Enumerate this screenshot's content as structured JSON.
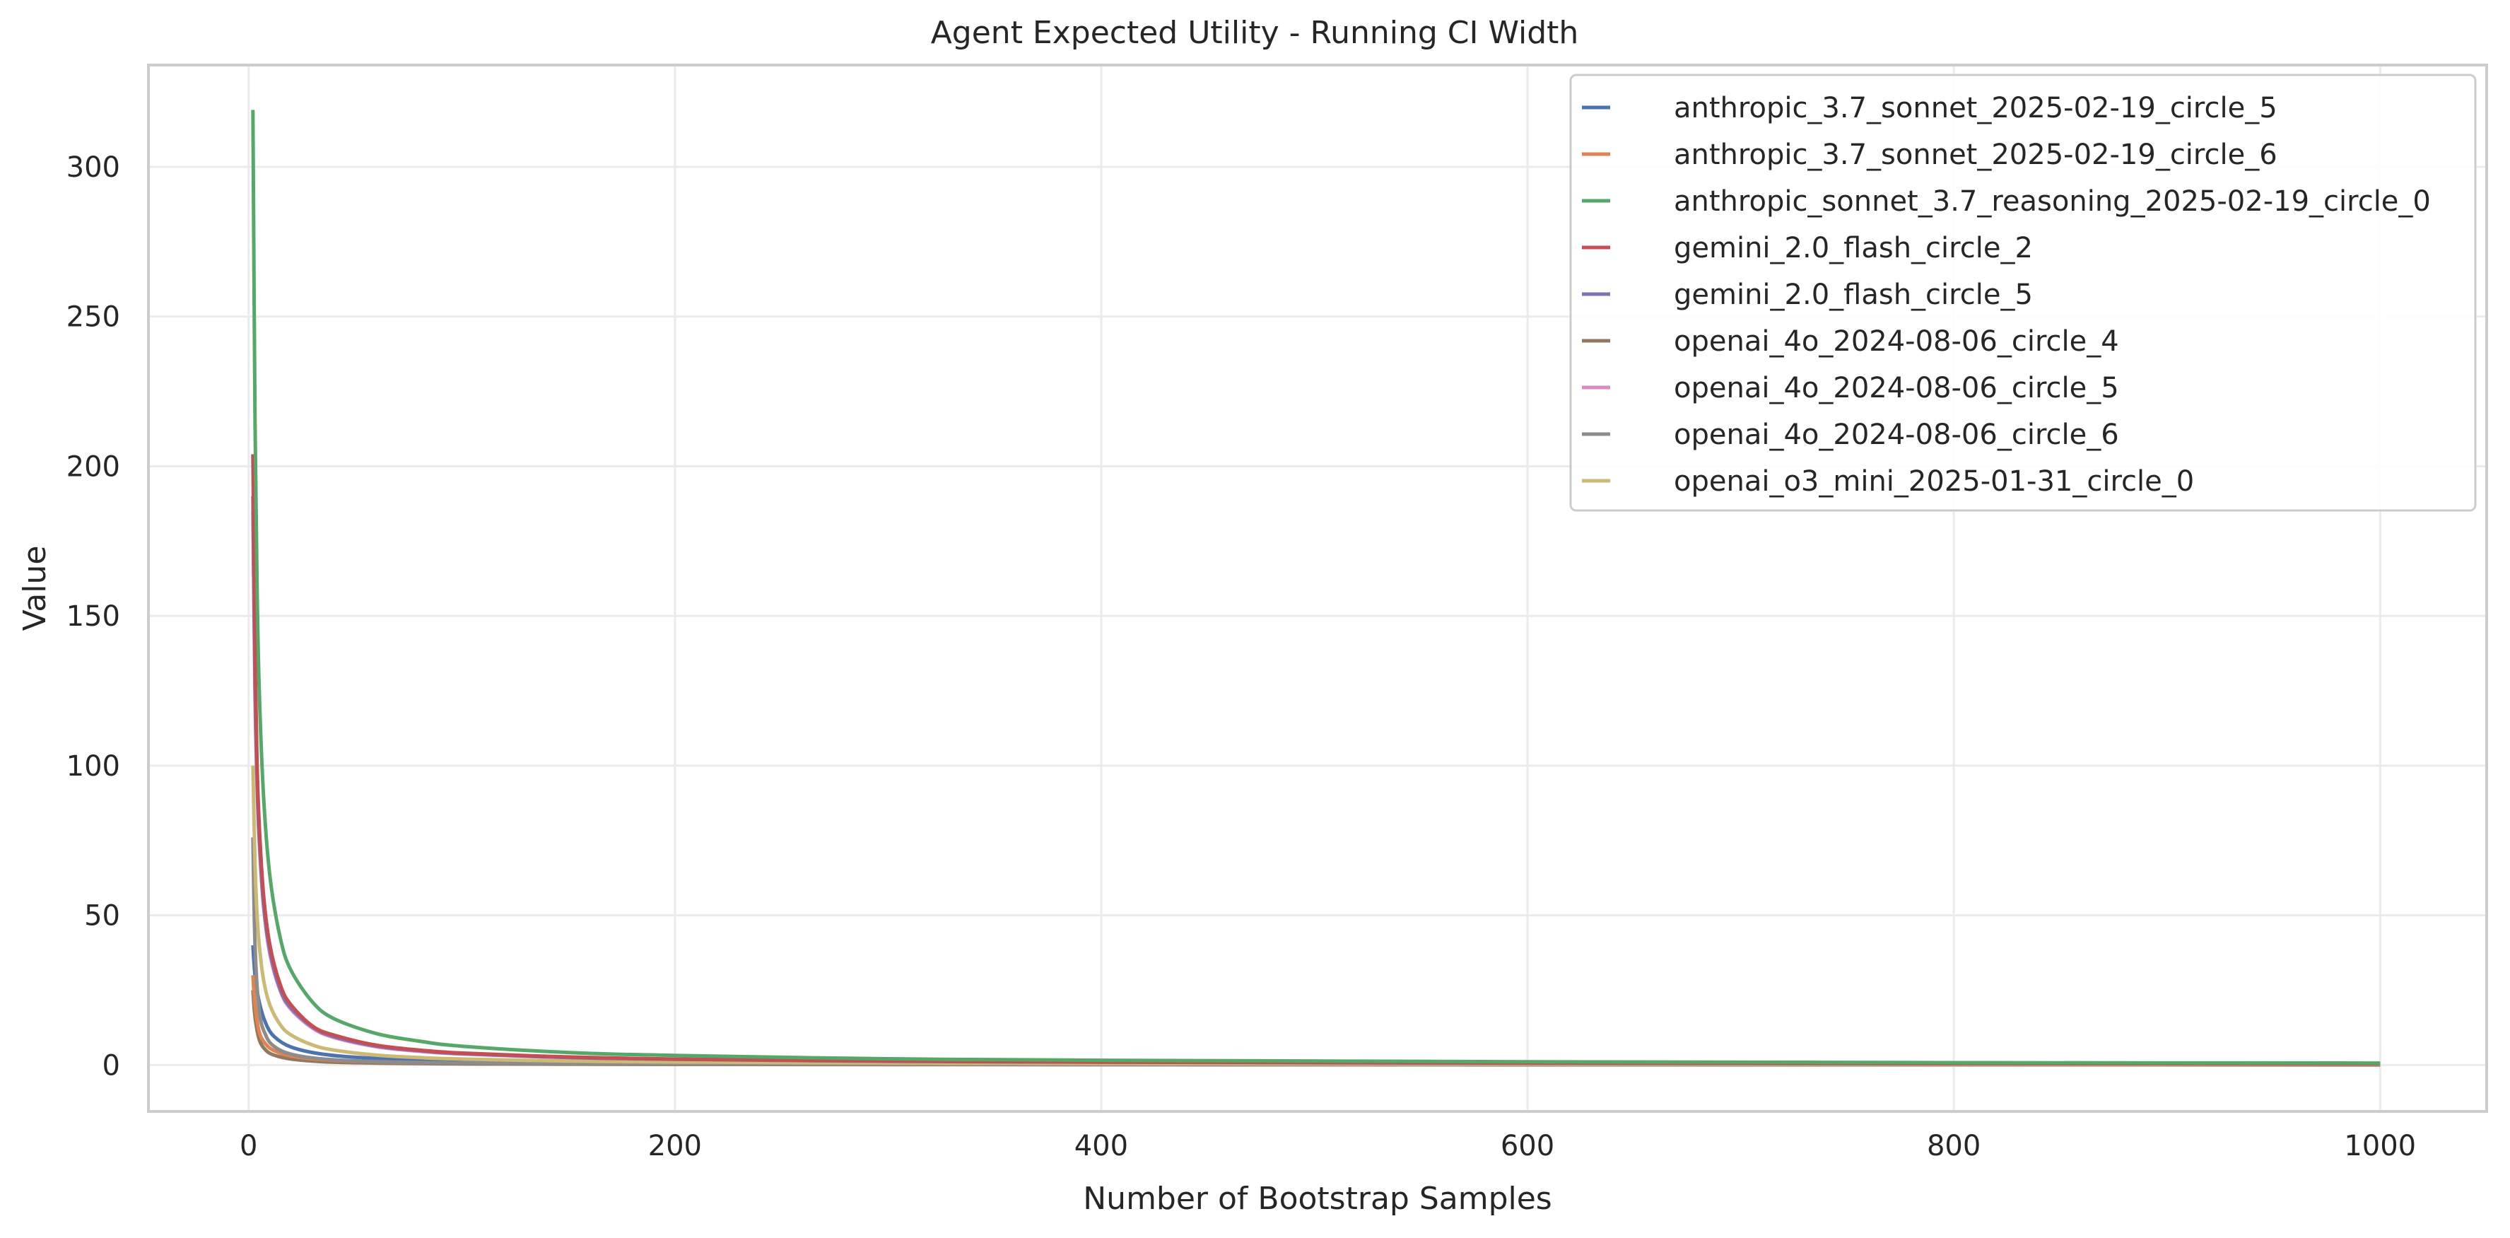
{
  "chart_data": {
    "type": "line",
    "title": "Agent Expected Utility - Running CI Width",
    "xlabel": "Number of Bootstrap Samples",
    "ylabel": "Value",
    "xlim": [
      -47,
      1050
    ],
    "ylim": [
      -15.5,
      334
    ],
    "xticks": [
      0,
      200,
      400,
      600,
      800,
      1000
    ],
    "yticks": [
      0,
      50,
      100,
      150,
      200,
      250,
      300
    ],
    "grid": true,
    "legend_position": "top-right",
    "x_range": [
      2,
      1000
    ],
    "series": [
      {
        "name": "anthropic_3.7_sonnet_2025-02-19_circle_5",
        "color": "#4c72b0",
        "points": [
          [
            2,
            40
          ],
          [
            3,
            30
          ],
          [
            5,
            21
          ],
          [
            8,
            14
          ],
          [
            12,
            9.5
          ],
          [
            20,
            6
          ],
          [
            35,
            3.6
          ],
          [
            60,
            2.2
          ],
          [
            100,
            1.4
          ],
          [
            200,
            0.8
          ],
          [
            400,
            0.45
          ],
          [
            700,
            0.3
          ],
          [
            1000,
            0.22
          ]
        ]
      },
      {
        "name": "anthropic_3.7_sonnet_2025-02-19_circle_6",
        "color": "#dd8452",
        "points": [
          [
            2,
            30
          ],
          [
            3,
            20
          ],
          [
            5,
            11
          ],
          [
            8,
            7
          ],
          [
            12,
            4.8
          ],
          [
            20,
            3
          ],
          [
            35,
            1.8
          ],
          [
            60,
            1.1
          ],
          [
            100,
            0.7
          ],
          [
            200,
            0.38
          ],
          [
            400,
            0.22
          ],
          [
            700,
            0.14
          ],
          [
            1000,
            0.1
          ]
        ]
      },
      {
        "name": "anthropic_sonnet_3.7_reasoning_2025-02-19_circle_0",
        "color": "#55a868",
        "points": [
          [
            2,
            319
          ],
          [
            3,
            215
          ],
          [
            4,
            158
          ],
          [
            5,
            125
          ],
          [
            7,
            90
          ],
          [
            10,
            63
          ],
          [
            15,
            42
          ],
          [
            20,
            31.5
          ],
          [
            30,
            21
          ],
          [
            40,
            15.5
          ],
          [
            60,
            10.5
          ],
          [
            80,
            8
          ],
          [
            100,
            6.3
          ],
          [
            150,
            4.2
          ],
          [
            200,
            3.2
          ],
          [
            300,
            2.1
          ],
          [
            400,
            1.6
          ],
          [
            600,
            1.1
          ],
          [
            800,
            0.8
          ],
          [
            1000,
            0.65
          ]
        ]
      },
      {
        "name": "gemini_2.0_flash_circle_2",
        "color": "#c44e52",
        "points": [
          [
            2,
            204
          ],
          [
            3,
            136
          ],
          [
            4,
            100
          ],
          [
            5,
            80
          ],
          [
            7,
            57
          ],
          [
            10,
            40
          ],
          [
            15,
            26.5
          ],
          [
            20,
            20
          ],
          [
            30,
            13
          ],
          [
            40,
            10
          ],
          [
            60,
            6.6
          ],
          [
            80,
            5
          ],
          [
            100,
            4
          ],
          [
            150,
            2.7
          ],
          [
            200,
            2
          ],
          [
            300,
            1.35
          ],
          [
            400,
            1
          ],
          [
            600,
            0.7
          ],
          [
            800,
            0.5
          ],
          [
            1000,
            0.4
          ]
        ]
      },
      {
        "name": "gemini_2.0_flash_circle_5",
        "color": "#8172b3",
        "points": [
          [
            2,
            190
          ],
          [
            3,
            127
          ],
          [
            4,
            95
          ],
          [
            5,
            76
          ],
          [
            7,
            54
          ],
          [
            10,
            38
          ],
          [
            15,
            25
          ],
          [
            20,
            19
          ],
          [
            30,
            12.7
          ],
          [
            40,
            9.5
          ],
          [
            60,
            6.3
          ],
          [
            80,
            4.8
          ],
          [
            100,
            3.8
          ],
          [
            150,
            2.5
          ],
          [
            200,
            1.9
          ],
          [
            300,
            1.27
          ],
          [
            400,
            0.95
          ],
          [
            600,
            0.63
          ],
          [
            800,
            0.48
          ],
          [
            1000,
            0.38
          ]
        ]
      },
      {
        "name": "openai_4o_2024-08-06_circle_4",
        "color": "#937860",
        "points": [
          [
            2,
            25
          ],
          [
            3,
            16
          ],
          [
            5,
            8.5
          ],
          [
            8,
            5
          ],
          [
            12,
            3.3
          ],
          [
            20,
            2
          ],
          [
            35,
            1.1
          ],
          [
            60,
            0.65
          ],
          [
            100,
            0.4
          ],
          [
            200,
            0.2
          ],
          [
            400,
            0.1
          ],
          [
            700,
            0.06
          ],
          [
            1000,
            0.04
          ]
        ]
      },
      {
        "name": "openai_4o_2024-08-06_circle_5",
        "color": "#da8bc3",
        "points": [
          [
            2,
            185
          ],
          [
            3,
            123
          ],
          [
            4,
            92
          ],
          [
            5,
            74
          ],
          [
            7,
            53
          ],
          [
            10,
            37
          ],
          [
            15,
            24.5
          ],
          [
            20,
            18.5
          ],
          [
            30,
            12.3
          ],
          [
            40,
            9.2
          ],
          [
            60,
            6.1
          ],
          [
            80,
            4.6
          ],
          [
            100,
            3.7
          ],
          [
            150,
            2.5
          ],
          [
            200,
            1.85
          ],
          [
            300,
            1.23
          ],
          [
            400,
            0.92
          ],
          [
            600,
            0.62
          ],
          [
            800,
            0.46
          ],
          [
            1000,
            0.37
          ]
        ]
      },
      {
        "name": "openai_4o_2024-08-06_circle_6",
        "color": "#8c8c8c",
        "points": [
          [
            2,
            76
          ],
          [
            3,
            40
          ],
          [
            5,
            18
          ],
          [
            8,
            10
          ],
          [
            12,
            6.2
          ],
          [
            20,
            3.6
          ],
          [
            35,
            2
          ],
          [
            60,
            1.15
          ],
          [
            100,
            0.7
          ],
          [
            200,
            0.35
          ],
          [
            400,
            0.18
          ],
          [
            700,
            0.1
          ],
          [
            1000,
            0.07
          ]
        ]
      },
      {
        "name": "openai_o3_mini_2025-01-31_circle_0",
        "color": "#ccb974",
        "points": [
          [
            2,
            100
          ],
          [
            3,
            67
          ],
          [
            4,
            50
          ],
          [
            5,
            40
          ],
          [
            7,
            28.5
          ],
          [
            10,
            20
          ],
          [
            15,
            13.3
          ],
          [
            20,
            10
          ],
          [
            30,
            6.7
          ],
          [
            40,
            5
          ],
          [
            60,
            3.3
          ],
          [
            80,
            2.5
          ],
          [
            100,
            2
          ],
          [
            150,
            1.33
          ],
          [
            200,
            1
          ],
          [
            300,
            0.67
          ],
          [
            400,
            0.5
          ],
          [
            600,
            0.33
          ],
          [
            800,
            0.25
          ],
          [
            1000,
            0.2
          ]
        ]
      }
    ]
  }
}
